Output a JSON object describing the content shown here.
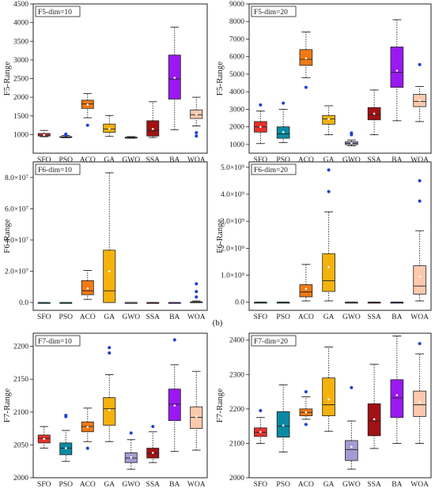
{
  "caption": "(b)",
  "chart_data": [
    {
      "type": "box",
      "title": "F5-dim=10",
      "ylabel": "F5-Range",
      "ylim": [
        500,
        4500
      ],
      "yticks": [
        1000,
        1500,
        2000,
        2500,
        3000,
        3500,
        4000,
        4500
      ],
      "ytick_labels": [
        "1000",
        "1500",
        "2000",
        "2500",
        "3000",
        "3500",
        "4000",
        "4500"
      ],
      "categories": [
        "SFO",
        "PSO",
        "ACO",
        "GA",
        "GWO",
        "SSA",
        "BA",
        "WOA"
      ],
      "boxes": [
        {
          "min": 940,
          "q1": 960,
          "median": 985,
          "q3": 1030,
          "max": 1110,
          "mean": 990,
          "outliers": []
        },
        {
          "min": 915,
          "q1": 920,
          "median": 930,
          "q3": 945,
          "max": 975,
          "mean": 935,
          "outliers": [
            990,
            1010
          ]
        },
        {
          "min": 1450,
          "q1": 1700,
          "median": 1820,
          "q3": 1920,
          "max": 2100,
          "mean": 1800,
          "outliers": [
            1250
          ]
        },
        {
          "min": 950,
          "q1": 1060,
          "median": 1150,
          "q3": 1280,
          "max": 1510,
          "mean": 1160,
          "outliers": []
        },
        {
          "min": 900,
          "q1": 910,
          "median": 920,
          "q3": 930,
          "max": 945,
          "mean": 922,
          "outliers": []
        },
        {
          "min": 920,
          "q1": 960,
          "median": 1100,
          "q3": 1370,
          "max": 1880,
          "mean": 1150,
          "outliers": []
        },
        {
          "min": 1130,
          "q1": 1950,
          "median": 2490,
          "q3": 3130,
          "max": 3880,
          "mean": 2520,
          "outliers": []
        },
        {
          "min": 1230,
          "q1": 1430,
          "median": 1530,
          "q3": 1660,
          "max": 2000,
          "mean": 1545,
          "outliers": [
            1050,
            960
          ]
        }
      ]
    },
    {
      "type": "box",
      "title": "F5-dim=20",
      "ylabel": "F5-Range",
      "ylim": [
        500,
        9000
      ],
      "yticks": [
        1000,
        2000,
        3000,
        4000,
        5000,
        6000,
        7000,
        8000,
        9000
      ],
      "ytick_labels": [
        "1000",
        "2000",
        "3000",
        "4000",
        "5000",
        "6000",
        "7000",
        "8000",
        "9000"
      ],
      "categories": [
        "SFO",
        "PSO",
        "ACO",
        "GA",
        "GWO",
        "SSA",
        "BA",
        "WOA"
      ],
      "boxes": [
        {
          "min": 1050,
          "q1": 1700,
          "median": 2000,
          "q3": 2300,
          "max": 2900,
          "mean": 2000,
          "outliers": [
            3250
          ]
        },
        {
          "min": 1100,
          "q1": 1350,
          "median": 1600,
          "q3": 2000,
          "max": 3000,
          "mean": 1700,
          "outliers": [
            3350
          ]
        },
        {
          "min": 4800,
          "q1": 5500,
          "median": 5850,
          "q3": 6400,
          "max": 7400,
          "mean": 5900,
          "outliers": [
            4250
          ]
        },
        {
          "min": 1550,
          "q1": 2150,
          "median": 2450,
          "q3": 2650,
          "max": 3200,
          "mean": 2450,
          "outliers": []
        },
        {
          "min": 920,
          "q1": 990,
          "median": 1060,
          "q3": 1150,
          "max": 1250,
          "mean": 1070,
          "outliers": [
            1550,
            1650
          ]
        },
        {
          "min": 1550,
          "q1": 2400,
          "median": 2700,
          "q3": 3100,
          "max": 4100,
          "mean": 2750,
          "outliers": []
        },
        {
          "min": 2350,
          "q1": 4250,
          "median": 5100,
          "q3": 6550,
          "max": 8100,
          "mean": 5200,
          "outliers": []
        },
        {
          "min": 2300,
          "q1": 3150,
          "median": 3450,
          "q3": 3850,
          "max": 4300,
          "mean": 3500,
          "outliers": [
            5550
          ]
        }
      ]
    },
    {
      "type": "box",
      "title": "F6-dim=10",
      "ylabel": "F6-Range",
      "ylim": [
        -5000000.0,
        90000000
      ],
      "yticks": [
        0,
        20000000,
        40000000,
        60000000,
        80000000
      ],
      "ytick_labels": [
        "0.0",
        "2.0×10⁷",
        "4.0×10⁷",
        "6.0×10⁷",
        "8.0×10⁷"
      ],
      "categories": [
        "SFO",
        "PSO",
        "ACO",
        "GA",
        "GWO",
        "SSA",
        "BA",
        "WOA"
      ],
      "boxes": [
        {
          "min": 0,
          "q1": 0,
          "median": 0,
          "q3": 0,
          "max": 0,
          "mean": 0,
          "outliers": []
        },
        {
          "min": 0,
          "q1": 0,
          "median": 0,
          "q3": 0,
          "max": 0,
          "mean": 0,
          "outliers": []
        },
        {
          "min": 2000000,
          "q1": 5000000,
          "median": 7500000,
          "q3": 14000000,
          "max": 20500000,
          "mean": 9000000,
          "outliers": []
        },
        {
          "min": 0,
          "q1": 0,
          "median": 7500000,
          "q3": 33500000,
          "max": 83000000,
          "mean": 20000000,
          "outliers": []
        },
        {
          "min": 0,
          "q1": 0,
          "median": 0,
          "q3": 0,
          "max": 0,
          "mean": 0,
          "outliers": []
        },
        {
          "min": 0,
          "q1": 0,
          "median": 0,
          "q3": 0,
          "max": 0,
          "mean": 0,
          "outliers": []
        },
        {
          "min": 0,
          "q1": 0,
          "median": 0,
          "q3": 0,
          "max": 0,
          "mean": 0,
          "outliers": []
        },
        {
          "min": 0,
          "q1": 0,
          "median": 0,
          "q3": 500000,
          "max": 1000000,
          "mean": 300000,
          "outliers": [
            3500000,
            7000000,
            12000000
          ]
        }
      ]
    },
    {
      "type": "box",
      "title": "F6-dim=20",
      "ylabel": "F6-Range",
      "ylim": [
        -300000000,
        5200000000
      ],
      "yticks": [
        0,
        1000000000,
        2000000000,
        3000000000,
        4000000000,
        5000000000
      ],
      "ytick_labels": [
        "0.0",
        "1.0×10⁹",
        "2.0×10⁹",
        "3.0×10⁹",
        "4.0×10⁹",
        "5.0×10⁹"
      ],
      "categories": [
        "SFO",
        "PSO",
        "ACO",
        "GA",
        "GWO",
        "SSA",
        "BA",
        "WOA"
      ],
      "boxes": [
        {
          "min": 0,
          "q1": 0,
          "median": 0,
          "q3": 0,
          "max": 0,
          "mean": 0,
          "outliers": []
        },
        {
          "min": 0,
          "q1": 0,
          "median": 0,
          "q3": 0,
          "max": 0,
          "mean": 0,
          "outliers": []
        },
        {
          "min": 50000000,
          "q1": 200000000,
          "median": 380000000,
          "q3": 650000000,
          "max": 1400000000,
          "mean": 500000000,
          "outliers": []
        },
        {
          "min": 50000000,
          "q1": 400000000,
          "median": 800000000,
          "q3": 1800000000,
          "max": 3350000000,
          "mean": 1300000000,
          "outliers": [
            4100000000,
            4900000000
          ]
        },
        {
          "min": 0,
          "q1": 0,
          "median": 0,
          "q3": 0,
          "max": 0,
          "mean": 0,
          "outliers": []
        },
        {
          "min": 0,
          "q1": 0,
          "median": 0,
          "q3": 0,
          "max": 0,
          "mean": 0,
          "outliers": []
        },
        {
          "min": 0,
          "q1": 0,
          "median": 0,
          "q3": 0,
          "max": 0,
          "mean": 0,
          "outliers": []
        },
        {
          "min": 50000000,
          "q1": 300000000,
          "median": 600000000,
          "q3": 1350000000,
          "max": 2650000000,
          "mean": 950000000,
          "outliers": [
            3750000000,
            4500000000
          ]
        }
      ]
    },
    {
      "type": "box",
      "title": "F7-dim=10",
      "ylabel": "F7-Range",
      "ylim": [
        2000,
        2220
      ],
      "yticks": [
        2000,
        2050,
        2100,
        2150,
        2200
      ],
      "ytick_labels": [
        "2000",
        "2050",
        "2100",
        "2150",
        "2200"
      ],
      "categories": [
        "SFO",
        "PSO",
        "ACO",
        "GA",
        "GWO",
        "SSA",
        "BA",
        "WOA"
      ],
      "boxes": [
        {
          "min": 2045,
          "q1": 2053,
          "median": 2060,
          "q3": 2065,
          "max": 2078,
          "mean": 2059,
          "outliers": []
        },
        {
          "min": 2025,
          "q1": 2035,
          "median": 2045,
          "q3": 2053,
          "max": 2072,
          "mean": 2045,
          "outliers": [
            2093,
            2095
          ]
        },
        {
          "min": 2055,
          "q1": 2070,
          "median": 2078,
          "q3": 2085,
          "max": 2106,
          "mean": 2077,
          "outliers": [
            2045
          ]
        },
        {
          "min": 2055,
          "q1": 2080,
          "median": 2105,
          "q3": 2122,
          "max": 2157,
          "mean": 2103,
          "outliers": [
            2190,
            2198
          ]
        },
        {
          "min": 2013,
          "q1": 2023,
          "median": 2030,
          "q3": 2038,
          "max": 2058,
          "mean": 2031,
          "outliers": [
            2068
          ]
        },
        {
          "min": 2023,
          "q1": 2030,
          "median": 2037,
          "q3": 2045,
          "max": 2070,
          "mean": 2038,
          "outliers": [
            2078
          ]
        },
        {
          "min": 2040,
          "q1": 2087,
          "median": 2112,
          "q3": 2135,
          "max": 2172,
          "mean": 2110,
          "outliers": [
            2210
          ]
        },
        {
          "min": 2042,
          "q1": 2075,
          "median": 2092,
          "q3": 2108,
          "max": 2162,
          "mean": 2093,
          "outliers": []
        }
      ]
    },
    {
      "type": "box",
      "title": "F7-dim=20",
      "ylabel": "F7-Range",
      "ylim": [
        2000,
        2420
      ],
      "yticks": [
        2000,
        2100,
        2200,
        2300,
        2400
      ],
      "ytick_labels": [
        "2000",
        "2100",
        "2200",
        "2300",
        "2400"
      ],
      "categories": [
        "SFO",
        "PSO",
        "ACO",
        "GA",
        "GWO",
        "SSA",
        "BA",
        "WOA"
      ],
      "boxes": [
        {
          "min": 2100,
          "q1": 2120,
          "median": 2132,
          "q3": 2145,
          "max": 2175,
          "mean": 2133,
          "outliers": [
            2195
          ]
        },
        {
          "min": 2075,
          "q1": 2118,
          "median": 2150,
          "q3": 2192,
          "max": 2270,
          "mean": 2152,
          "outliers": []
        },
        {
          "min": 2170,
          "q1": 2180,
          "median": 2190,
          "q3": 2200,
          "max": 2235,
          "mean": 2190,
          "outliers": [
            2250,
            2155
          ]
        },
        {
          "min": 2135,
          "q1": 2180,
          "median": 2212,
          "q3": 2290,
          "max": 2380,
          "mean": 2228,
          "outliers": []
        },
        {
          "min": 2025,
          "q1": 2050,
          "median": 2082,
          "q3": 2108,
          "max": 2165,
          "mean": 2090,
          "outliers": [
            2262
          ]
        },
        {
          "min": 2085,
          "q1": 2122,
          "median": 2165,
          "q3": 2215,
          "max": 2330,
          "mean": 2170,
          "outliers": []
        },
        {
          "min": 2100,
          "q1": 2175,
          "median": 2232,
          "q3": 2285,
          "max": 2412,
          "mean": 2240,
          "outliers": []
        },
        {
          "min": 2100,
          "q1": 2178,
          "median": 2212,
          "q3": 2252,
          "max": 2360,
          "mean": 2220,
          "outliers": [
            2390
          ]
        }
      ]
    }
  ],
  "colors": {
    "F5": [
      "#e8312b",
      "#0b8aa3",
      "#f07a14",
      "#f5b20c",
      "#a79ad3",
      "#a11214",
      "#9a19f0",
      "#fdc9ad"
    ],
    "F6": [
      "#0b8aa3",
      "#0b8aa3",
      "#f07a14",
      "#f5b20c",
      "#a79ad3",
      "#a11214",
      "#9a19f0",
      "#fdc9ad"
    ],
    "F7": [
      "#e8312b",
      "#0b8aa3",
      "#f07a14",
      "#f5b20c",
      "#a79ad3",
      "#a11214",
      "#9a19f0",
      "#fdc9ad"
    ],
    "outlier": "#1f3fd6",
    "mean_marker": "#ffffff"
  }
}
